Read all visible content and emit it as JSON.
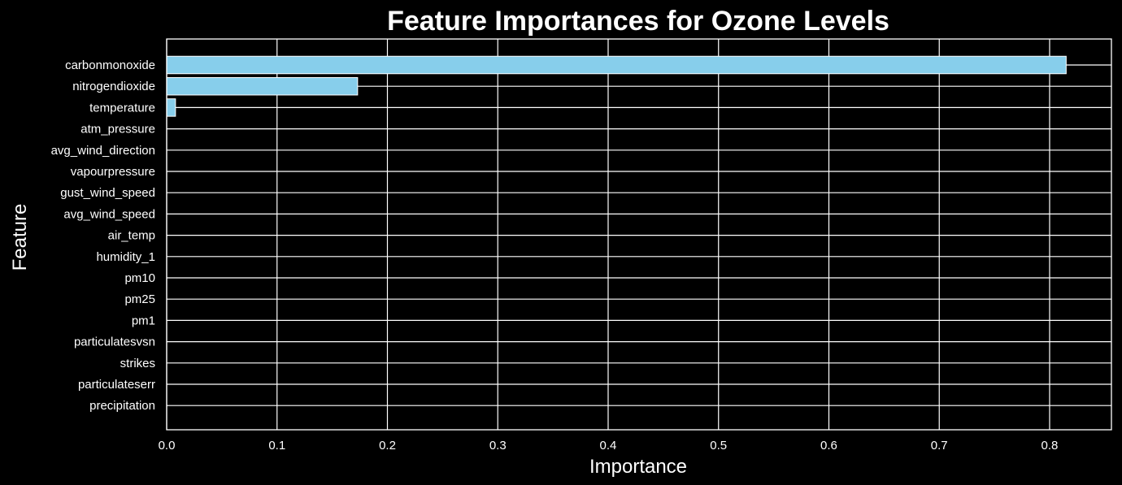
{
  "chart_data": {
    "type": "bar",
    "orientation": "horizontal",
    "title": "Feature Importances for Ozone Levels",
    "xlabel": "Importance",
    "ylabel": "Feature",
    "categories": [
      "carbonmonoxide",
      "nitrogendioxide",
      "temperature",
      "atm_pressure",
      "avg_wind_direction",
      "vapourpressure",
      "gust_wind_speed",
      "avg_wind_speed",
      "air_temp",
      "humidity_1",
      "pm10",
      "pm25",
      "pm1",
      "particulatesvsn",
      "strikes",
      "particulateserr",
      "precipitation"
    ],
    "values": [
      0.815,
      0.173,
      0.008,
      0,
      0,
      0,
      0,
      0,
      0,
      0,
      0,
      0,
      0,
      0,
      0,
      0,
      0
    ],
    "xticks": [
      "0.0",
      "0.1",
      "0.2",
      "0.3",
      "0.4",
      "0.5",
      "0.6",
      "0.7",
      "0.8"
    ],
    "xlim": [
      0,
      0.856
    ],
    "grid": true,
    "bar_color": "#87ceeb",
    "background_color": "#000000",
    "grid_color": "#ffffff"
  }
}
